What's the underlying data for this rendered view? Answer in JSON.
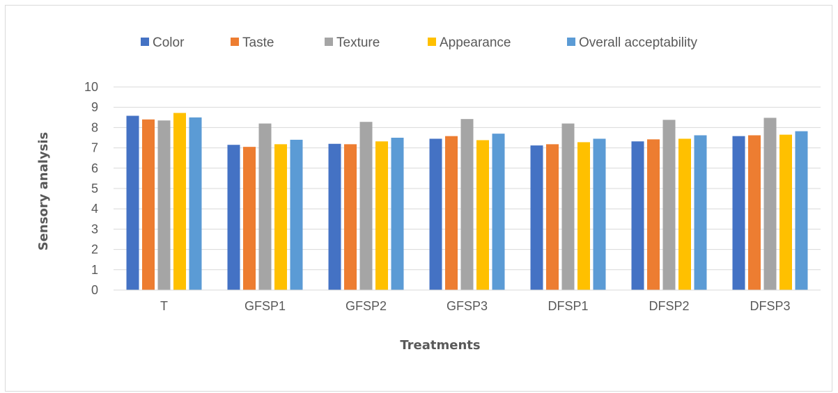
{
  "chart_data": {
    "type": "bar",
    "categories": [
      "T",
      "GFSP1",
      "GFSP2",
      "GFSP3",
      "DFSP1",
      "DFSP2",
      "DFSP3"
    ],
    "series": [
      {
        "name": "Color",
        "color": "#4472C4",
        "values": [
          8.58,
          7.15,
          7.2,
          7.45,
          7.12,
          7.32,
          7.58
        ]
      },
      {
        "name": "Taste",
        "color": "#ED7D31",
        "values": [
          8.4,
          7.05,
          7.18,
          7.58,
          7.18,
          7.42,
          7.62
        ]
      },
      {
        "name": "Texture",
        "color": "#A5A5A5",
        "values": [
          8.35,
          8.2,
          8.28,
          8.42,
          8.2,
          8.38,
          8.48
        ]
      },
      {
        "name": "Appearance",
        "color": "#FFC000",
        "values": [
          8.72,
          7.18,
          7.32,
          7.38,
          7.28,
          7.45,
          7.65
        ]
      },
      {
        "name": "Overall acceptability",
        "color": "#5B9BD5",
        "values": [
          8.5,
          7.4,
          7.5,
          7.7,
          7.45,
          7.62,
          7.82
        ]
      }
    ],
    "title": "",
    "xlabel": "Treatments",
    "ylabel": "Sensory analysis",
    "ylim": [
      0,
      10
    ],
    "yticks": [
      "0",
      "1",
      "2",
      "3",
      "4",
      "5",
      "6",
      "7",
      "8",
      "9",
      "10"
    ],
    "grid": true,
    "legend_position": "top"
  }
}
